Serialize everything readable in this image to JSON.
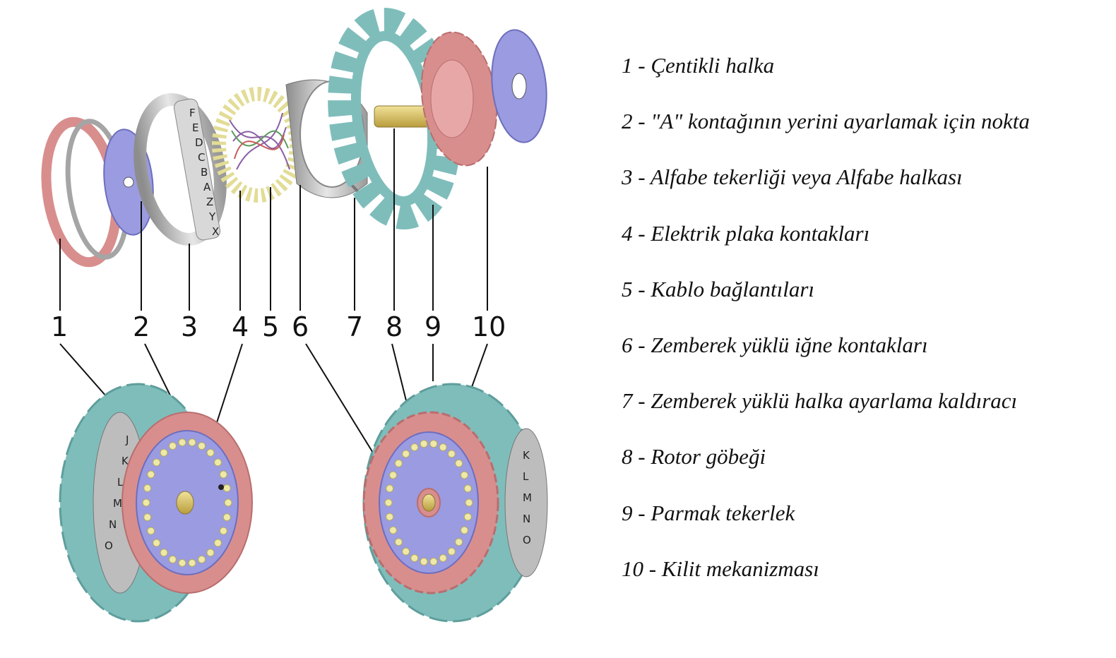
{
  "legend": {
    "items": [
      "1 - Çentikli halka",
      "2 - \"A\" kontağının yerini ayarlamak için nokta",
      "3 - Alfabe tekerliği veya Alfabe halkası",
      "4 - Elektrik plaka kontakları",
      "5 - Kablo bağlantıları",
      "6 - Zemberek yüklü iğne kontakları",
      "7 - Zemberek yüklü halka ayarlama kaldıracı",
      "8 - Rotor göbeği",
      "9 - Parmak tekerlek",
      "10 - Kilit mekanizması"
    ]
  },
  "callouts": [
    "1",
    "2",
    "3",
    "4",
    "5",
    "6",
    "7",
    "8",
    "9",
    "10"
  ],
  "alphabet_ring": {
    "exploded_letters": [
      "F",
      "E",
      "D",
      "C",
      "B",
      "A",
      "Z",
      "Y",
      "X"
    ],
    "assembled_letters": [
      "J",
      "K",
      "L",
      "M",
      "N",
      "O"
    ],
    "right_letters": [
      "K",
      "L",
      "M",
      "N",
      "O"
    ]
  },
  "colors": {
    "notched_ring": "#d98e8e",
    "contact_plate": "#9a9be0",
    "alphabet_ring": "#c9c9c9",
    "finger_wheel": "#7fbdbb",
    "hub": "#d9c66a",
    "pins": "#efe9a8"
  }
}
